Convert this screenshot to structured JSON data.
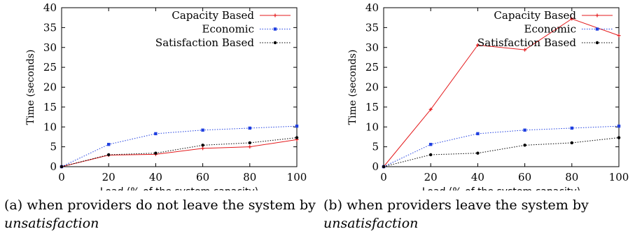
{
  "chart_data": [
    {
      "type": "line",
      "title": "",
      "xlabel": "Load (% of the system capacity)",
      "ylabel": "Time (seconds)",
      "xlim": [
        0,
        100
      ],
      "ylim": [
        0,
        40
      ],
      "x": [
        0,
        20,
        40,
        60,
        80,
        100
      ],
      "xticks": [
        0,
        20,
        40,
        60,
        80,
        100
      ],
      "yticks": [
        0,
        5,
        10,
        15,
        20,
        25,
        30,
        35,
        40
      ],
      "grid": false,
      "legend_position": "top-right",
      "series": [
        {
          "name": "Capacity Based",
          "color": "#e41a1c",
          "marker": "plus",
          "dash": "solid",
          "values": [
            0,
            2.9,
            3.1,
            4.6,
            5.0,
            6.8
          ]
        },
        {
          "name": "Economic",
          "color": "#1f3fe0",
          "marker": "square",
          "dash": "dotted",
          "values": [
            0,
            5.6,
            8.3,
            9.2,
            9.7,
            10.2
          ]
        },
        {
          "name": "Satisfaction Based",
          "color": "#000000",
          "marker": "circle",
          "dash": "dotted",
          "values": [
            0,
            3.0,
            3.4,
            5.4,
            6.0,
            7.3
          ]
        }
      ]
    },
    {
      "type": "line",
      "title": "",
      "xlabel": "Load (% of the system capacity)",
      "ylabel": "Time (seconds)",
      "xlim": [
        0,
        100
      ],
      "ylim": [
        0,
        40
      ],
      "x": [
        0,
        20,
        40,
        60,
        80,
        100
      ],
      "xticks": [
        0,
        20,
        40,
        60,
        80,
        100
      ],
      "yticks": [
        0,
        5,
        10,
        15,
        20,
        25,
        30,
        35,
        40
      ],
      "grid": false,
      "legend_position": "top-right",
      "series": [
        {
          "name": "Capacity Based",
          "color": "#e41a1c",
          "marker": "plus",
          "dash": "solid",
          "values": [
            0,
            14.4,
            30.6,
            29.4,
            37.2,
            33.0
          ]
        },
        {
          "name": "Economic",
          "color": "#1f3fe0",
          "marker": "square",
          "dash": "dotted",
          "values": [
            0,
            5.6,
            8.3,
            9.2,
            9.7,
            10.2
          ]
        },
        {
          "name": "Satisfaction Based",
          "color": "#000000",
          "marker": "circle",
          "dash": "dotted",
          "values": [
            0,
            3.0,
            3.4,
            5.4,
            6.0,
            7.3
          ]
        }
      ]
    }
  ],
  "captions": {
    "a": {
      "prefix": "(a) when providers do not leave the system by ",
      "emph": "unsatisfaction"
    },
    "b": {
      "prefix": "(b) when providers leave the system by ",
      "emph": "unsatisfaction"
    }
  }
}
